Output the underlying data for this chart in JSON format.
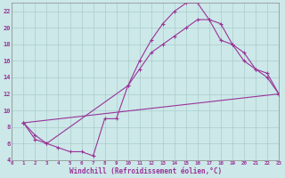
{
  "bg_color": "#cce8e8",
  "grid_color": "#aacccc",
  "line_color": "#993399",
  "xlabel": "Windchill (Refroidissement éolien,°C)",
  "xlim": [
    0,
    23
  ],
  "ylim": [
    4,
    23
  ],
  "yticks": [
    4,
    6,
    8,
    10,
    12,
    14,
    16,
    18,
    20,
    22
  ],
  "xticks": [
    0,
    1,
    2,
    3,
    4,
    5,
    6,
    7,
    8,
    9,
    10,
    11,
    12,
    13,
    14,
    15,
    16,
    17,
    18,
    19,
    20,
    21,
    22,
    23
  ],
  "line1_x": [
    1,
    2,
    3,
    4,
    5,
    6,
    7,
    8,
    9,
    10,
    11,
    12,
    13,
    14,
    15,
    16,
    17,
    18,
    19,
    20,
    21,
    22,
    23
  ],
  "line1_y": [
    8.5,
    7,
    6,
    5.5,
    5,
    5,
    4.5,
    9,
    9,
    13,
    16,
    18.5,
    20.5,
    22,
    23,
    23,
    21,
    20.5,
    18,
    17,
    15,
    14,
    12
  ],
  "line2_x": [
    1,
    2,
    3,
    10,
    11,
    12,
    13,
    14,
    15,
    16,
    17,
    18,
    19,
    20,
    21,
    22,
    23
  ],
  "line2_y": [
    8.5,
    6.5,
    6,
    13,
    15,
    17,
    18,
    19,
    20,
    21,
    21,
    18.5,
    18,
    16,
    15,
    14.5,
    12
  ],
  "line3_x": [
    1,
    23
  ],
  "line3_y": [
    8.5,
    12
  ]
}
